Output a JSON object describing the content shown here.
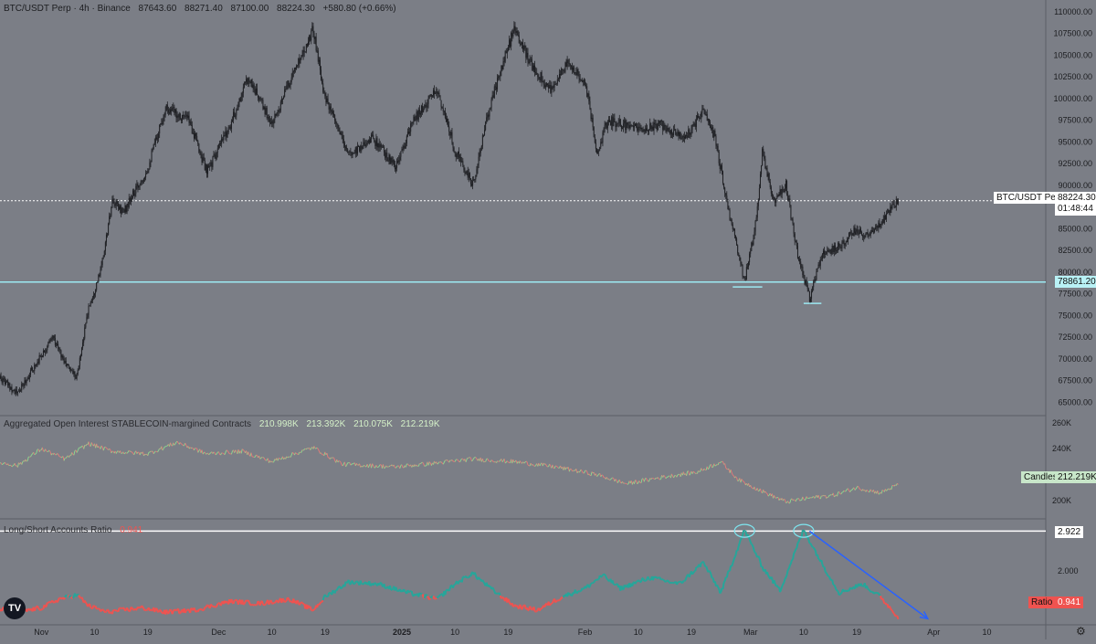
{
  "header": {
    "symbol": "BTC/USDT Perp · 4h · Binance",
    "open": "87643.60",
    "high": "88271.40",
    "low": "87100.00",
    "close": "88224.30",
    "change": "+580.80 (+0.66%)"
  },
  "price_tag": {
    "symbol": "BTC/USDT Perp",
    "price": "88224.30",
    "countdown": "01:48:44"
  },
  "support_tag": "78861.20",
  "oi_panel": {
    "title": "Aggregated Open Interest STABLECOIN-margined Contracts",
    "values": [
      "210.998K",
      "213.392K",
      "210.075K",
      "212.219K"
    ],
    "tag_label": "Candles",
    "tag_value": "212.219K"
  },
  "ls_panel": {
    "title": "Long/Short Accounts Ratio",
    "title_value": "0.941",
    "line_tag": "2.922",
    "tag_label": "Ratio",
    "tag_value": "0.941"
  },
  "colors": {
    "background": "#7b7e86",
    "candle": "#1e1f23",
    "support": "#9ce9f2",
    "ratio_up": "#26a69a",
    "ratio_down": "#ef5350",
    "trend_arrow": "#2962ff"
  },
  "chart_data": [
    {
      "type": "candlestick",
      "title": "BTC/USDT Perp · 4h · Binance",
      "y_ticks": [
        "65000.00",
        "67500.00",
        "70000.00",
        "72500.00",
        "75000.00",
        "77500.00",
        "80000.00",
        "82500.00",
        "85000.00",
        "87500.00",
        "90000.00",
        "92500.00",
        "95000.00",
        "97500.00",
        "100000.00",
        "102500.00",
        "105000.00",
        "107500.00",
        "110000.00"
      ],
      "ylim": [
        64000,
        110500
      ],
      "x_ticks": [
        "Nov",
        "10",
        "19",
        "Dec",
        "10",
        "19",
        "2025",
        "10",
        "19",
        "Feb",
        "10",
        "19",
        "Mar",
        "10",
        "19",
        "Apr",
        "10"
      ],
      "horizontal_lines": [
        78861.2,
        88224.3
      ],
      "close_path": [
        {
          "date": "2024-10-24",
          "close": 68500
        },
        {
          "date": "2024-10-28",
          "close": 66000
        },
        {
          "date": "2024-11-01",
          "close": 70500
        },
        {
          "date": "2024-11-03",
          "close": 72500
        },
        {
          "date": "2024-11-05",
          "close": 69500
        },
        {
          "date": "2024-11-07",
          "close": 68000
        },
        {
          "date": "2024-11-09",
          "close": 76000
        },
        {
          "date": "2024-11-11",
          "close": 80000
        },
        {
          "date": "2024-11-13",
          "close": 88000
        },
        {
          "date": "2024-11-15",
          "close": 87000
        },
        {
          "date": "2024-11-19",
          "close": 92000
        },
        {
          "date": "2024-11-22",
          "close": 99000
        },
        {
          "date": "2024-11-26",
          "close": 97500
        },
        {
          "date": "2024-11-29",
          "close": 91500
        },
        {
          "date": "2024-12-03",
          "close": 97000
        },
        {
          "date": "2024-12-06",
          "close": 102500
        },
        {
          "date": "2024-12-10",
          "close": 97000
        },
        {
          "date": "2024-12-13",
          "close": 102000
        },
        {
          "date": "2024-12-17",
          "close": 108000
        },
        {
          "date": "2024-12-19",
          "close": 100000
        },
        {
          "date": "2024-12-23",
          "close": 93500
        },
        {
          "date": "2024-12-27",
          "close": 95500
        },
        {
          "date": "2024-12-31",
          "close": 92000
        },
        {
          "date": "2025-01-03",
          "close": 97500
        },
        {
          "date": "2025-01-07",
          "close": 101000
        },
        {
          "date": "2025-01-10",
          "close": 94000
        },
        {
          "date": "2025-01-13",
          "close": 90000
        },
        {
          "date": "2025-01-16",
          "close": 99500
        },
        {
          "date": "2025-01-20",
          "close": 108000
        },
        {
          "date": "2025-01-22",
          "close": 105000
        },
        {
          "date": "2025-01-26",
          "close": 101000
        },
        {
          "date": "2025-01-29",
          "close": 104000
        },
        {
          "date": "2025-02-01",
          "close": 102000
        },
        {
          "date": "2025-02-03",
          "close": 94000
        },
        {
          "date": "2025-02-05",
          "close": 97500
        },
        {
          "date": "2025-02-10",
          "close": 96500
        },
        {
          "date": "2025-02-14",
          "close": 97000
        },
        {
          "date": "2025-02-18",
          "close": 95500
        },
        {
          "date": "2025-02-21",
          "close": 98500
        },
        {
          "date": "2025-02-23",
          "close": 95500
        },
        {
          "date": "2025-02-25",
          "close": 88000
        },
        {
          "date": "2025-02-28",
          "close": 79000
        },
        {
          "date": "2025-03-02",
          "close": 86000
        },
        {
          "date": "2025-03-03",
          "close": 94000
        },
        {
          "date": "2025-03-05",
          "close": 88000
        },
        {
          "date": "2025-03-07",
          "close": 90000
        },
        {
          "date": "2025-03-09",
          "close": 82000
        },
        {
          "date": "2025-03-11",
          "close": 77000
        },
        {
          "date": "2025-03-13",
          "close": 82000
        },
        {
          "date": "2025-03-16",
          "close": 83000
        },
        {
          "date": "2025-03-19",
          "close": 85000
        },
        {
          "date": "2025-03-21",
          "close": 84000
        },
        {
          "date": "2025-03-24",
          "close": 86500
        },
        {
          "date": "2025-03-26",
          "close": 88224.3
        }
      ]
    },
    {
      "type": "line",
      "title": "Aggregated Open Interest STABLECOIN-margined Contracts",
      "y_ticks": [
        "200K",
        "220K",
        "240K",
        "260K"
      ],
      "ylim": [
        188000,
        262000
      ],
      "points": [
        {
          "date": "2024-10-24",
          "value": 230000
        },
        {
          "date": "2024-10-28",
          "value": 227000
        },
        {
          "date": "2024-11-01",
          "value": 240000
        },
        {
          "date": "2024-11-05",
          "value": 232000
        },
        {
          "date": "2024-11-09",
          "value": 244000
        },
        {
          "date": "2024-11-13",
          "value": 238000
        },
        {
          "date": "2024-11-19",
          "value": 236000
        },
        {
          "date": "2024-11-24",
          "value": 245000
        },
        {
          "date": "2024-11-29",
          "value": 236000
        },
        {
          "date": "2024-12-05",
          "value": 238000
        },
        {
          "date": "2024-12-10",
          "value": 230000
        },
        {
          "date": "2024-12-17",
          "value": 241000
        },
        {
          "date": "2024-12-22",
          "value": 228000
        },
        {
          "date": "2024-12-31",
          "value": 226000
        },
        {
          "date": "2025-01-07",
          "value": 229000
        },
        {
          "date": "2025-01-13",
          "value": 232000
        },
        {
          "date": "2025-01-20",
          "value": 230000
        },
        {
          "date": "2025-01-27",
          "value": 226000
        },
        {
          "date": "2025-02-03",
          "value": 220000
        },
        {
          "date": "2025-02-08",
          "value": 213000
        },
        {
          "date": "2025-02-14",
          "value": 218000
        },
        {
          "date": "2025-02-20",
          "value": 222000
        },
        {
          "date": "2025-02-24",
          "value": 230000
        },
        {
          "date": "2025-02-27",
          "value": 216000
        },
        {
          "date": "2025-03-04",
          "value": 205000
        },
        {
          "date": "2025-03-07",
          "value": 199000
        },
        {
          "date": "2025-03-11",
          "value": 202000
        },
        {
          "date": "2025-03-15",
          "value": 204000
        },
        {
          "date": "2025-03-19",
          "value": 210000
        },
        {
          "date": "2025-03-23",
          "value": 206000
        },
        {
          "date": "2025-03-26",
          "value": 212219
        }
      ]
    },
    {
      "type": "line",
      "title": "Long/Short Accounts Ratio",
      "y_ticks": [
        "2.000",
        "2.922"
      ],
      "ylim": [
        0.8,
        3.1
      ],
      "horizontal_lines": [
        2.922
      ],
      "points": [
        {
          "date": "2024-10-24",
          "value": 1.15
        },
        {
          "date": "2024-10-28",
          "value": 1.05
        },
        {
          "date": "2024-11-01",
          "value": 1.15
        },
        {
          "date": "2024-11-04",
          "value": 1.35
        },
        {
          "date": "2024-11-07",
          "value": 1.45
        },
        {
          "date": "2024-11-09",
          "value": 1.2
        },
        {
          "date": "2024-11-12",
          "value": 1.05
        },
        {
          "date": "2024-11-18",
          "value": 1.15
        },
        {
          "date": "2024-11-22",
          "value": 1.05
        },
        {
          "date": "2024-11-27",
          "value": 1.1
        },
        {
          "date": "2024-12-03",
          "value": 1.3
        },
        {
          "date": "2024-12-08",
          "value": 1.25
        },
        {
          "date": "2024-12-13",
          "value": 1.35
        },
        {
          "date": "2024-12-17",
          "value": 1.1
        },
        {
          "date": "2024-12-19",
          "value": 1.4
        },
        {
          "date": "2024-12-23",
          "value": 1.75
        },
        {
          "date": "2024-12-28",
          "value": 1.7
        },
        {
          "date": "2025-01-02",
          "value": 1.5
        },
        {
          "date": "2025-01-07",
          "value": 1.35
        },
        {
          "date": "2025-01-10",
          "value": 1.7
        },
        {
          "date": "2025-01-13",
          "value": 1.95
        },
        {
          "date": "2025-01-16",
          "value": 1.6
        },
        {
          "date": "2025-01-20",
          "value": 1.2
        },
        {
          "date": "2025-01-24",
          "value": 1.1
        },
        {
          "date": "2025-01-28",
          "value": 1.4
        },
        {
          "date": "2025-02-01",
          "value": 1.6
        },
        {
          "date": "2025-02-04",
          "value": 1.9
        },
        {
          "date": "2025-02-07",
          "value": 1.6
        },
        {
          "date": "2025-02-12",
          "value": 1.85
        },
        {
          "date": "2025-02-17",
          "value": 1.7
        },
        {
          "date": "2025-02-21",
          "value": 2.2
        },
        {
          "date": "2025-02-24",
          "value": 1.5
        },
        {
          "date": "2025-02-28",
          "value": 2.95
        },
        {
          "date": "2025-03-03",
          "value": 2.1
        },
        {
          "date": "2025-03-06",
          "value": 1.55
        },
        {
          "date": "2025-03-10",
          "value": 2.95
        },
        {
          "date": "2025-03-13",
          "value": 2.2
        },
        {
          "date": "2025-03-16",
          "value": 1.5
        },
        {
          "date": "2025-03-20",
          "value": 1.7
        },
        {
          "date": "2025-03-23",
          "value": 1.4
        },
        {
          "date": "2025-03-26",
          "value": 0.941
        }
      ],
      "annotations": [
        {
          "type": "circle",
          "date": "2025-02-28",
          "value": 2.95
        },
        {
          "type": "circle",
          "date": "2025-03-10",
          "value": 2.95
        },
        {
          "type": "arrow",
          "from": {
            "date": "2025-03-11",
            "value": 2.92
          },
          "to": {
            "date": "2025-03-31",
            "value": 0.9
          }
        }
      ]
    }
  ]
}
